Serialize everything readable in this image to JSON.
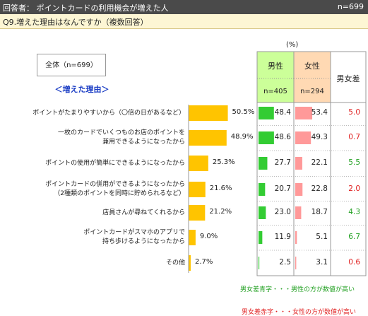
{
  "header": {
    "title": "回答者： ポイントカードの利用機会が増えた人",
    "n": "n=699"
  },
  "question": "Q9.増えた理由はなんですか（複数回答）",
  "unit": "(%)",
  "total_label": "全体（n=699）",
  "reason_label": "＜増えた理由＞",
  "columns": {
    "male": {
      "label": "男性",
      "n": "n=405"
    },
    "female": {
      "label": "女性",
      "n": "n=294"
    },
    "diff": {
      "label": "男女差"
    }
  },
  "colors": {
    "overall": "#ffc400",
    "male": "#33cc33",
    "female": "#ff9999",
    "male_header": "#ccff99",
    "female_header": "#ffd9b3",
    "blue_text": "#1a3cc4",
    "diff_green": "#22a022",
    "diff_red": "#e02020"
  },
  "legend": {
    "blue": "男女差青字・・・男性の方が数値が高い",
    "red": "男女差赤字・・・女性の方が数値が高い"
  },
  "chart_data": {
    "type": "bar",
    "categories": [
      [
        "ポイントがたまりやすいから（〇倍の日があるなど）"
      ],
      [
        "一枚のカードでいくつものお店のポイントを",
        "兼用できるようになったから"
      ],
      [
        "ポイントの使用が簡単にできるようになったから"
      ],
      [
        "ポイントカードの併用ができるようになったから",
        "（2種類のポイントを同時に貯められるなど）"
      ],
      [
        "店員さんが尋ねてくれるから"
      ],
      [
        "ポイントカードがスマホのアプリで",
        "持ち歩けるようになったから"
      ],
      [
        "その他"
      ]
    ],
    "series": [
      {
        "name": "全体",
        "values": [
          50.5,
          48.9,
          25.3,
          21.6,
          21.2,
          9.0,
          2.7
        ],
        "labels": [
          "50.5%",
          "48.9%",
          "25.3%",
          "21.6%",
          "21.2%",
          "9.0%",
          "2.7%"
        ]
      },
      {
        "name": "男性",
        "values": [
          48.4,
          48.6,
          27.7,
          20.7,
          23.0,
          11.9,
          2.5
        ],
        "labels": [
          "48.4",
          "48.6",
          "27.7",
          "20.7",
          "23.0",
          "11.9",
          "2.5"
        ]
      },
      {
        "name": "女性",
        "values": [
          53.4,
          49.3,
          22.1,
          22.8,
          18.7,
          5.1,
          3.1
        ],
        "labels": [
          "53.4",
          "49.3",
          "22.1",
          "22.8",
          "18.7",
          "5.1",
          "3.1"
        ]
      }
    ],
    "diff": {
      "labels": [
        "5.0",
        "0.7",
        "5.5",
        "2.0",
        "4.3",
        "6.7",
        "0.6"
      ],
      "higher": [
        "female",
        "female",
        "male",
        "female",
        "male",
        "male",
        "female"
      ]
    }
  }
}
